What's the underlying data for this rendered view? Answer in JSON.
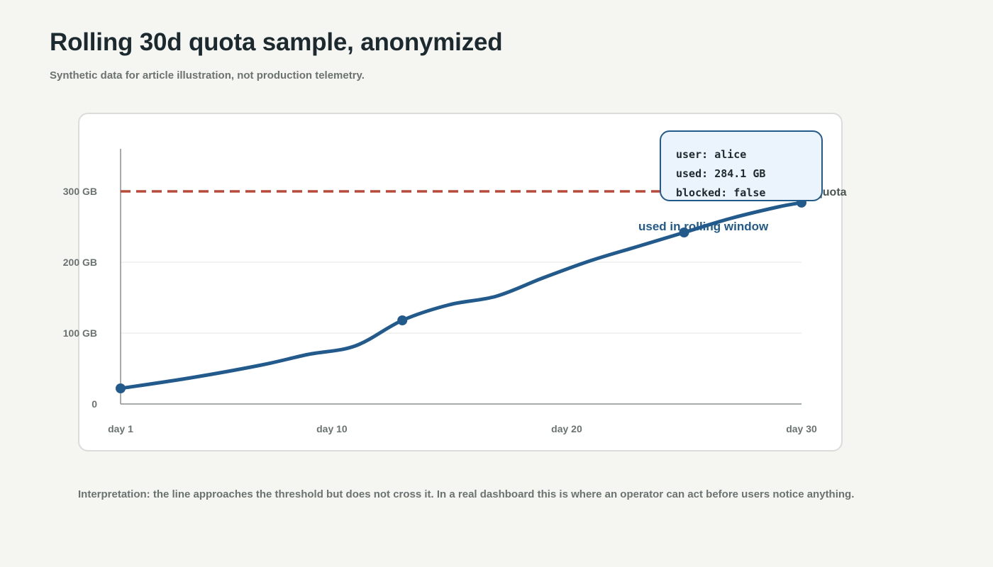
{
  "header": {
    "title": "Rolling 30d quota sample, anonymized",
    "subtitle": "Synthetic data for article illustration, not production telemetry."
  },
  "chart_data": {
    "type": "line",
    "title": "",
    "xlabel": "",
    "ylabel": "",
    "x_ticks": [
      {
        "x": 1,
        "label": "day 1"
      },
      {
        "x": 10,
        "label": "day 10"
      },
      {
        "x": 20,
        "label": "day 20"
      },
      {
        "x": 30,
        "label": "day 30"
      }
    ],
    "y_ticks": [
      {
        "y": 0,
        "label": "0"
      },
      {
        "y": 100,
        "label": "100 GB"
      },
      {
        "y": 200,
        "label": "200 GB"
      },
      {
        "y": 300,
        "label": "300 GB"
      }
    ],
    "xlim": [
      1,
      30
    ],
    "ylim": [
      0,
      300
    ],
    "grid": true,
    "series": [
      {
        "name": "used in rolling window",
        "color": "#235a8c",
        "x": [
          1,
          4,
          7,
          9,
          11,
          13,
          15,
          17,
          19,
          21,
          23,
          25,
          27,
          29,
          30
        ],
        "y": [
          22,
          37,
          55,
          70,
          82,
          118,
          140,
          152,
          178,
          202,
          222,
          242,
          262,
          278,
          284.1
        ],
        "markers": [
          1,
          13,
          25,
          30
        ]
      }
    ],
    "threshold": {
      "value": 300,
      "label": "quota",
      "color": "#b84a3b",
      "style": "dashed"
    }
  },
  "tooltip": {
    "rows": [
      {
        "key": "user:",
        "value": "alice"
      },
      {
        "key": "used:",
        "value": "284.1 GB"
      },
      {
        "key": "blocked:",
        "value": "false"
      }
    ]
  },
  "footer": {
    "interpretation": "Interpretation: the line approaches the threshold but does not cross it. In a real dashboard this is where an operator can act before users notice anything."
  },
  "colors": {
    "background": "#f5f5f1",
    "series": "#235a8c",
    "threshold": "#b84a3b",
    "tooltip_bg": "#ebf3fc"
  }
}
